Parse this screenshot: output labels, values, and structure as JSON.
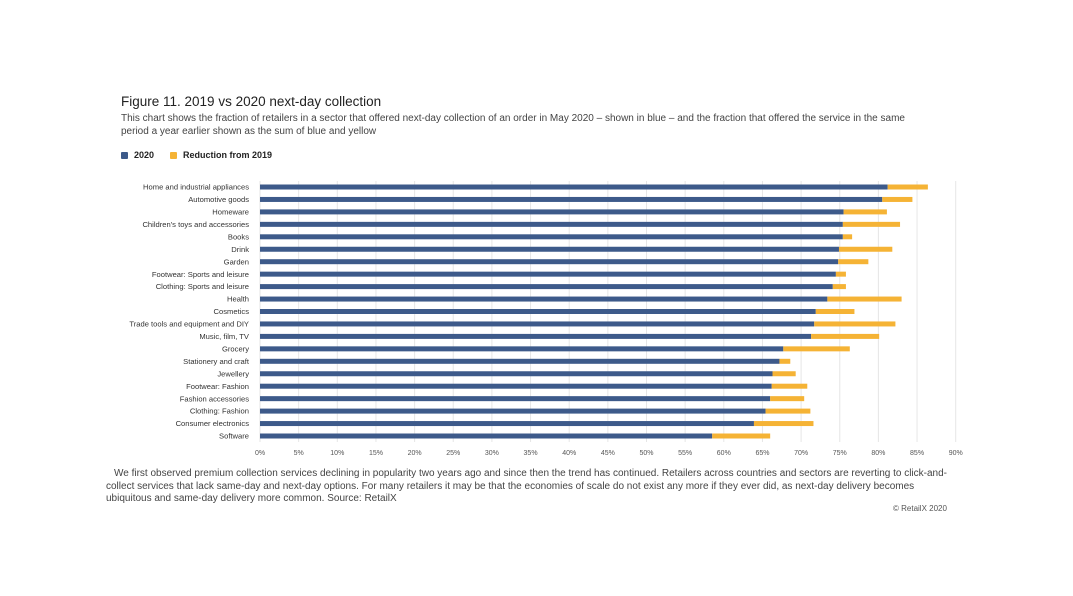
{
  "figure": {
    "title": "Figure 11. 2019 vs 2020 next-day collection",
    "subtitle": "This chart shows the fraction of retailers in a sector that offered next-day collection of an order in May 2020 – shown in blue – and the fraction that offered the service in the same period a year earlier shown as the sum of blue and yellow"
  },
  "legend": {
    "items": [
      {
        "label": "2020",
        "color": "#3d5a8a"
      },
      {
        "label": "Reduction from 2019",
        "color": "#f5b335"
      }
    ]
  },
  "chart_data": {
    "type": "bar",
    "orientation": "horizontal",
    "stacked": true,
    "categories": [
      "Home and industrial appliances",
      "Automotive goods",
      "Homeware",
      "Children's toys and accessories",
      "Books",
      "Drink",
      "Garden",
      "Footwear: Sports and leisure",
      "Clothing: Sports and leisure",
      "Health",
      "Cosmetics",
      "Trade tools and equipment and DIY",
      "Music, film, TV",
      "Grocery",
      "Stationery and craft",
      "Jewellery",
      "Footwear: Fashion",
      "Fashion accessories",
      "Clothing: Fashion",
      "Consumer electronics",
      "Software"
    ],
    "series": [
      {
        "name": "2020",
        "color": "#3d5a8a",
        "values": [
          81.2,
          80.5,
          75.5,
          75.4,
          75.4,
          74.9,
          74.8,
          74.5,
          74.1,
          73.4,
          71.9,
          71.7,
          71.3,
          67.7,
          67.2,
          66.3,
          66.2,
          66.0,
          65.4,
          63.9,
          58.5
        ]
      },
      {
        "name": "Reduction from 2019",
        "color": "#f5b335",
        "values": [
          5.2,
          3.9,
          5.6,
          7.4,
          1.2,
          6.9,
          3.9,
          1.3,
          1.7,
          9.6,
          5.0,
          10.5,
          8.8,
          8.6,
          1.4,
          3.0,
          4.6,
          4.4,
          5.8,
          7.7,
          7.5
        ]
      }
    ],
    "x_ticks": [
      "0%",
      "5%",
      "10%",
      "15%",
      "20%",
      "25%",
      "30%",
      "35%",
      "40%",
      "45%",
      "50%",
      "55%",
      "60%",
      "65%",
      "70%",
      "75%",
      "80%",
      "85%",
      "90%"
    ],
    "xlim": [
      0,
      90
    ],
    "grid": true,
    "legend_position": "top-left"
  },
  "body_text": "We first observed premium collection services declining in popularity two years ago and since then the trend has continued. Retailers across countries and sectors are reverting to click-and-collect services that lack same-day and next-day options. For many retailers it may be that the economies of scale do not exist any more if they ever did, as next-day delivery becomes ubiquitous and same-day delivery more common. Source: RetailX",
  "copyright": "© RetailX 2020"
}
